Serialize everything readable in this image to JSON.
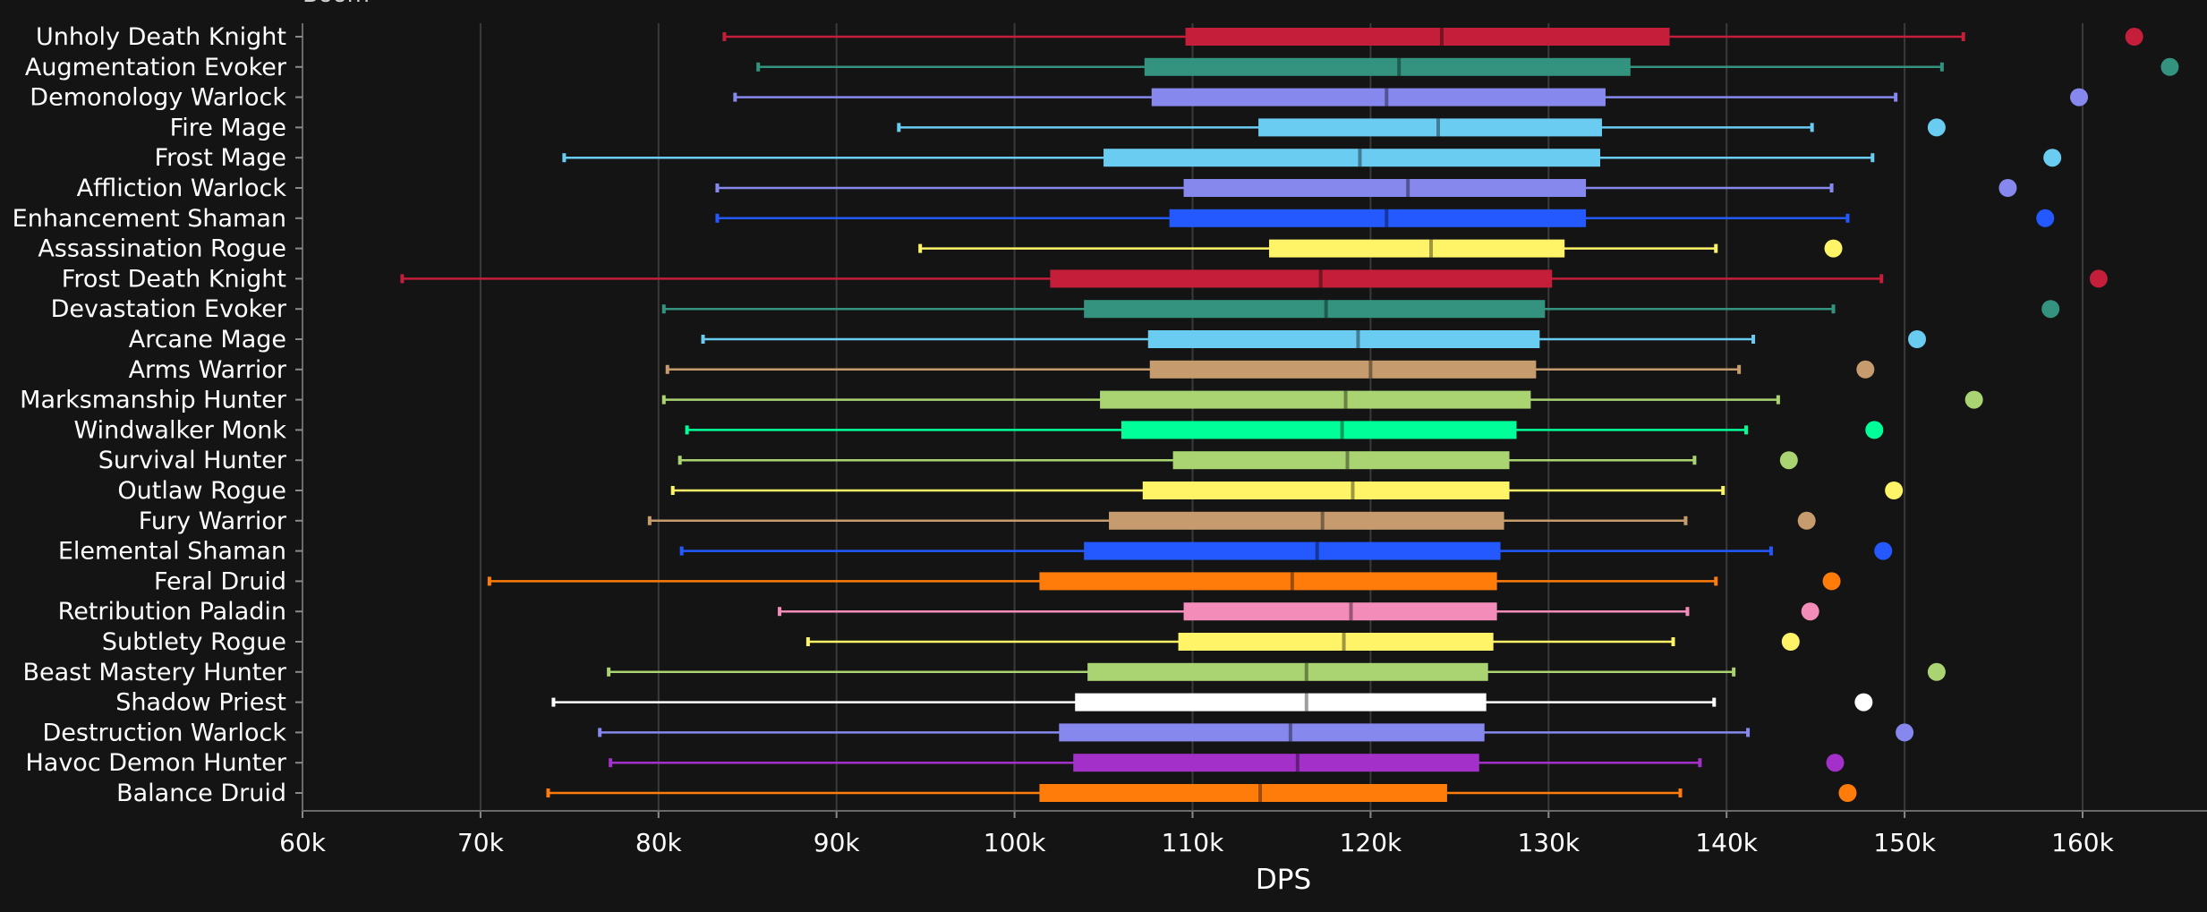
{
  "chart_data": {
    "type": "box",
    "title": "Boom",
    "xlabel": "DPS",
    "ylabel": "",
    "xlim": [
      60000,
      165000
    ],
    "x_ticks": [
      60000,
      70000,
      80000,
      90000,
      100000,
      110000,
      120000,
      130000,
      140000,
      150000,
      160000
    ],
    "x_tick_labels": [
      "60k",
      "70k",
      "80k",
      "90k",
      "100k",
      "110k",
      "120k",
      "130k",
      "140k",
      "150k",
      "160k"
    ],
    "grid": "vertical",
    "series": [
      {
        "name": "Unholy Death Knight",
        "color": "#c41e3a",
        "min": 83700,
        "q1": 109600,
        "median": 124000,
        "q3": 136800,
        "max": 153300,
        "max_point": 162900
      },
      {
        "name": "Augmentation Evoker",
        "color": "#33937f",
        "min": 85600,
        "q1": 107300,
        "median": 121600,
        "q3": 134600,
        "max": 152100,
        "max_point": 164900
      },
      {
        "name": "Demonology Warlock",
        "color": "#8788ee",
        "min": 84300,
        "q1": 107700,
        "median": 120900,
        "q3": 133200,
        "max": 149500,
        "max_point": 159800
      },
      {
        "name": "Fire Mage",
        "color": "#69ccf0",
        "min": 93500,
        "q1": 113700,
        "median": 123800,
        "q3": 133000,
        "max": 144800,
        "max_point": 151800
      },
      {
        "name": "Frost Mage",
        "color": "#69ccf0",
        "min": 74700,
        "q1": 105000,
        "median": 119400,
        "q3": 132900,
        "max": 148200,
        "max_point": 158300
      },
      {
        "name": "Affliction Warlock",
        "color": "#8788ee",
        "min": 83300,
        "q1": 109500,
        "median": 122100,
        "q3": 132100,
        "max": 145900,
        "max_point": 155800
      },
      {
        "name": "Enhancement Shaman",
        "color": "#2359ff",
        "min": 83300,
        "q1": 108700,
        "median": 120900,
        "q3": 132100,
        "max": 146800,
        "max_point": 157900
      },
      {
        "name": "Assassination Rogue",
        "color": "#fff468",
        "min": 94700,
        "q1": 114300,
        "median": 123400,
        "q3": 130900,
        "max": 139400,
        "max_point": 146000
      },
      {
        "name": "Frost Death Knight",
        "color": "#c41e3a",
        "min": 65600,
        "q1": 102000,
        "median": 117200,
        "q3": 130200,
        "max": 148700,
        "max_point": 160900
      },
      {
        "name": "Devastation Evoker",
        "color": "#33937f",
        "min": 80300,
        "q1": 103900,
        "median": 117500,
        "q3": 129800,
        "max": 146000,
        "max_point": 158200
      },
      {
        "name": "Arcane Mage",
        "color": "#69ccf0",
        "min": 82500,
        "q1": 107500,
        "median": 119300,
        "q3": 129500,
        "max": 141500,
        "max_point": 150700
      },
      {
        "name": "Arms Warrior",
        "color": "#c69b6d",
        "min": 80500,
        "q1": 107600,
        "median": 120000,
        "q3": 129300,
        "max": 140700,
        "max_point": 147800
      },
      {
        "name": "Marksmanship Hunter",
        "color": "#aad372",
        "min": 80300,
        "q1": 104800,
        "median": 118600,
        "q3": 129000,
        "max": 142900,
        "max_point": 153900
      },
      {
        "name": "Windwalker Monk",
        "color": "#00ff98",
        "min": 81600,
        "q1": 106000,
        "median": 118400,
        "q3": 128200,
        "max": 141100,
        "max_point": 148300
      },
      {
        "name": "Survival Hunter",
        "color": "#aad372",
        "min": 81200,
        "q1": 108900,
        "median": 118700,
        "q3": 127800,
        "max": 138200,
        "max_point": 143500
      },
      {
        "name": "Outlaw Rogue",
        "color": "#fff468",
        "min": 80800,
        "q1": 107200,
        "median": 119000,
        "q3": 127800,
        "max": 139800,
        "max_point": 149400
      },
      {
        "name": "Fury Warrior",
        "color": "#c69b6d",
        "min": 79500,
        "q1": 105300,
        "median": 117300,
        "q3": 127500,
        "max": 137700,
        "max_point": 144500
      },
      {
        "name": "Elemental Shaman",
        "color": "#2359ff",
        "min": 81300,
        "q1": 103900,
        "median": 117000,
        "q3": 127300,
        "max": 142500,
        "max_point": 148800
      },
      {
        "name": "Feral Druid",
        "color": "#ff7c0a",
        "min": 70500,
        "q1": 101400,
        "median": 115600,
        "q3": 127100,
        "max": 139400,
        "max_point": 145900
      },
      {
        "name": "Retribution Paladin",
        "color": "#f48cba",
        "min": 86800,
        "q1": 109500,
        "median": 118900,
        "q3": 127100,
        "max": 137800,
        "max_point": 144700
      },
      {
        "name": "Subtlety Rogue",
        "color": "#fff468",
        "min": 88400,
        "q1": 109200,
        "median": 118500,
        "q3": 126900,
        "max": 137000,
        "max_point": 143600
      },
      {
        "name": "Beast Mastery Hunter",
        "color": "#aad372",
        "min": 77200,
        "q1": 104100,
        "median": 116400,
        "q3": 126600,
        "max": 140400,
        "max_point": 151800
      },
      {
        "name": "Shadow Priest",
        "color": "#ffffff",
        "min": 74100,
        "q1": 103400,
        "median": 116400,
        "q3": 126500,
        "max": 139300,
        "max_point": 147700
      },
      {
        "name": "Destruction Warlock",
        "color": "#8788ee",
        "min": 76700,
        "q1": 102500,
        "median": 115500,
        "q3": 126400,
        "max": 141200,
        "max_point": 150000
      },
      {
        "name": "Havoc Demon Hunter",
        "color": "#a330c9",
        "min": 77300,
        "q1": 103300,
        "median": 115900,
        "q3": 126100,
        "max": 138500,
        "max_point": 146100
      },
      {
        "name": "Balance Druid",
        "color": "#ff7c0a",
        "min": 73800,
        "q1": 101400,
        "median": 113800,
        "q3": 124300,
        "max": 137400,
        "max_point": 146800
      }
    ]
  }
}
